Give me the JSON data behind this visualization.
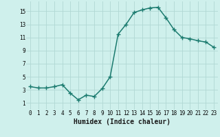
{
  "x": [
    0,
    1,
    2,
    3,
    4,
    5,
    6,
    7,
    8,
    9,
    10,
    11,
    12,
    13,
    14,
    15,
    16,
    17,
    18,
    19,
    20,
    21,
    22,
    23
  ],
  "y": [
    3.5,
    3.3,
    3.3,
    3.5,
    3.8,
    2.5,
    1.5,
    2.2,
    2.0,
    3.2,
    5.0,
    11.5,
    13.0,
    14.8,
    15.2,
    15.5,
    15.6,
    14.0,
    12.2,
    11.0,
    10.8,
    10.5,
    10.3,
    9.5
  ],
  "line_color": "#1a7a6e",
  "marker": "+",
  "marker_size": 4.0,
  "bg_color": "#cff0ec",
  "grid_color": "#b0d8d4",
  "xlabel": "Humidex (Indice chaleur)",
  "xlim": [
    -0.5,
    23.5
  ],
  "ylim": [
    0,
    16.5
  ],
  "xticks": [
    0,
    1,
    2,
    3,
    4,
    5,
    6,
    7,
    8,
    9,
    10,
    11,
    12,
    13,
    14,
    15,
    16,
    17,
    18,
    19,
    20,
    21,
    22,
    23
  ],
  "yticks": [
    1,
    3,
    5,
    7,
    9,
    11,
    13,
    15
  ],
  "tick_fontsize": 5.5,
  "xlabel_fontsize": 7.0,
  "line_width": 1.1,
  "marker_lw": 1.0
}
